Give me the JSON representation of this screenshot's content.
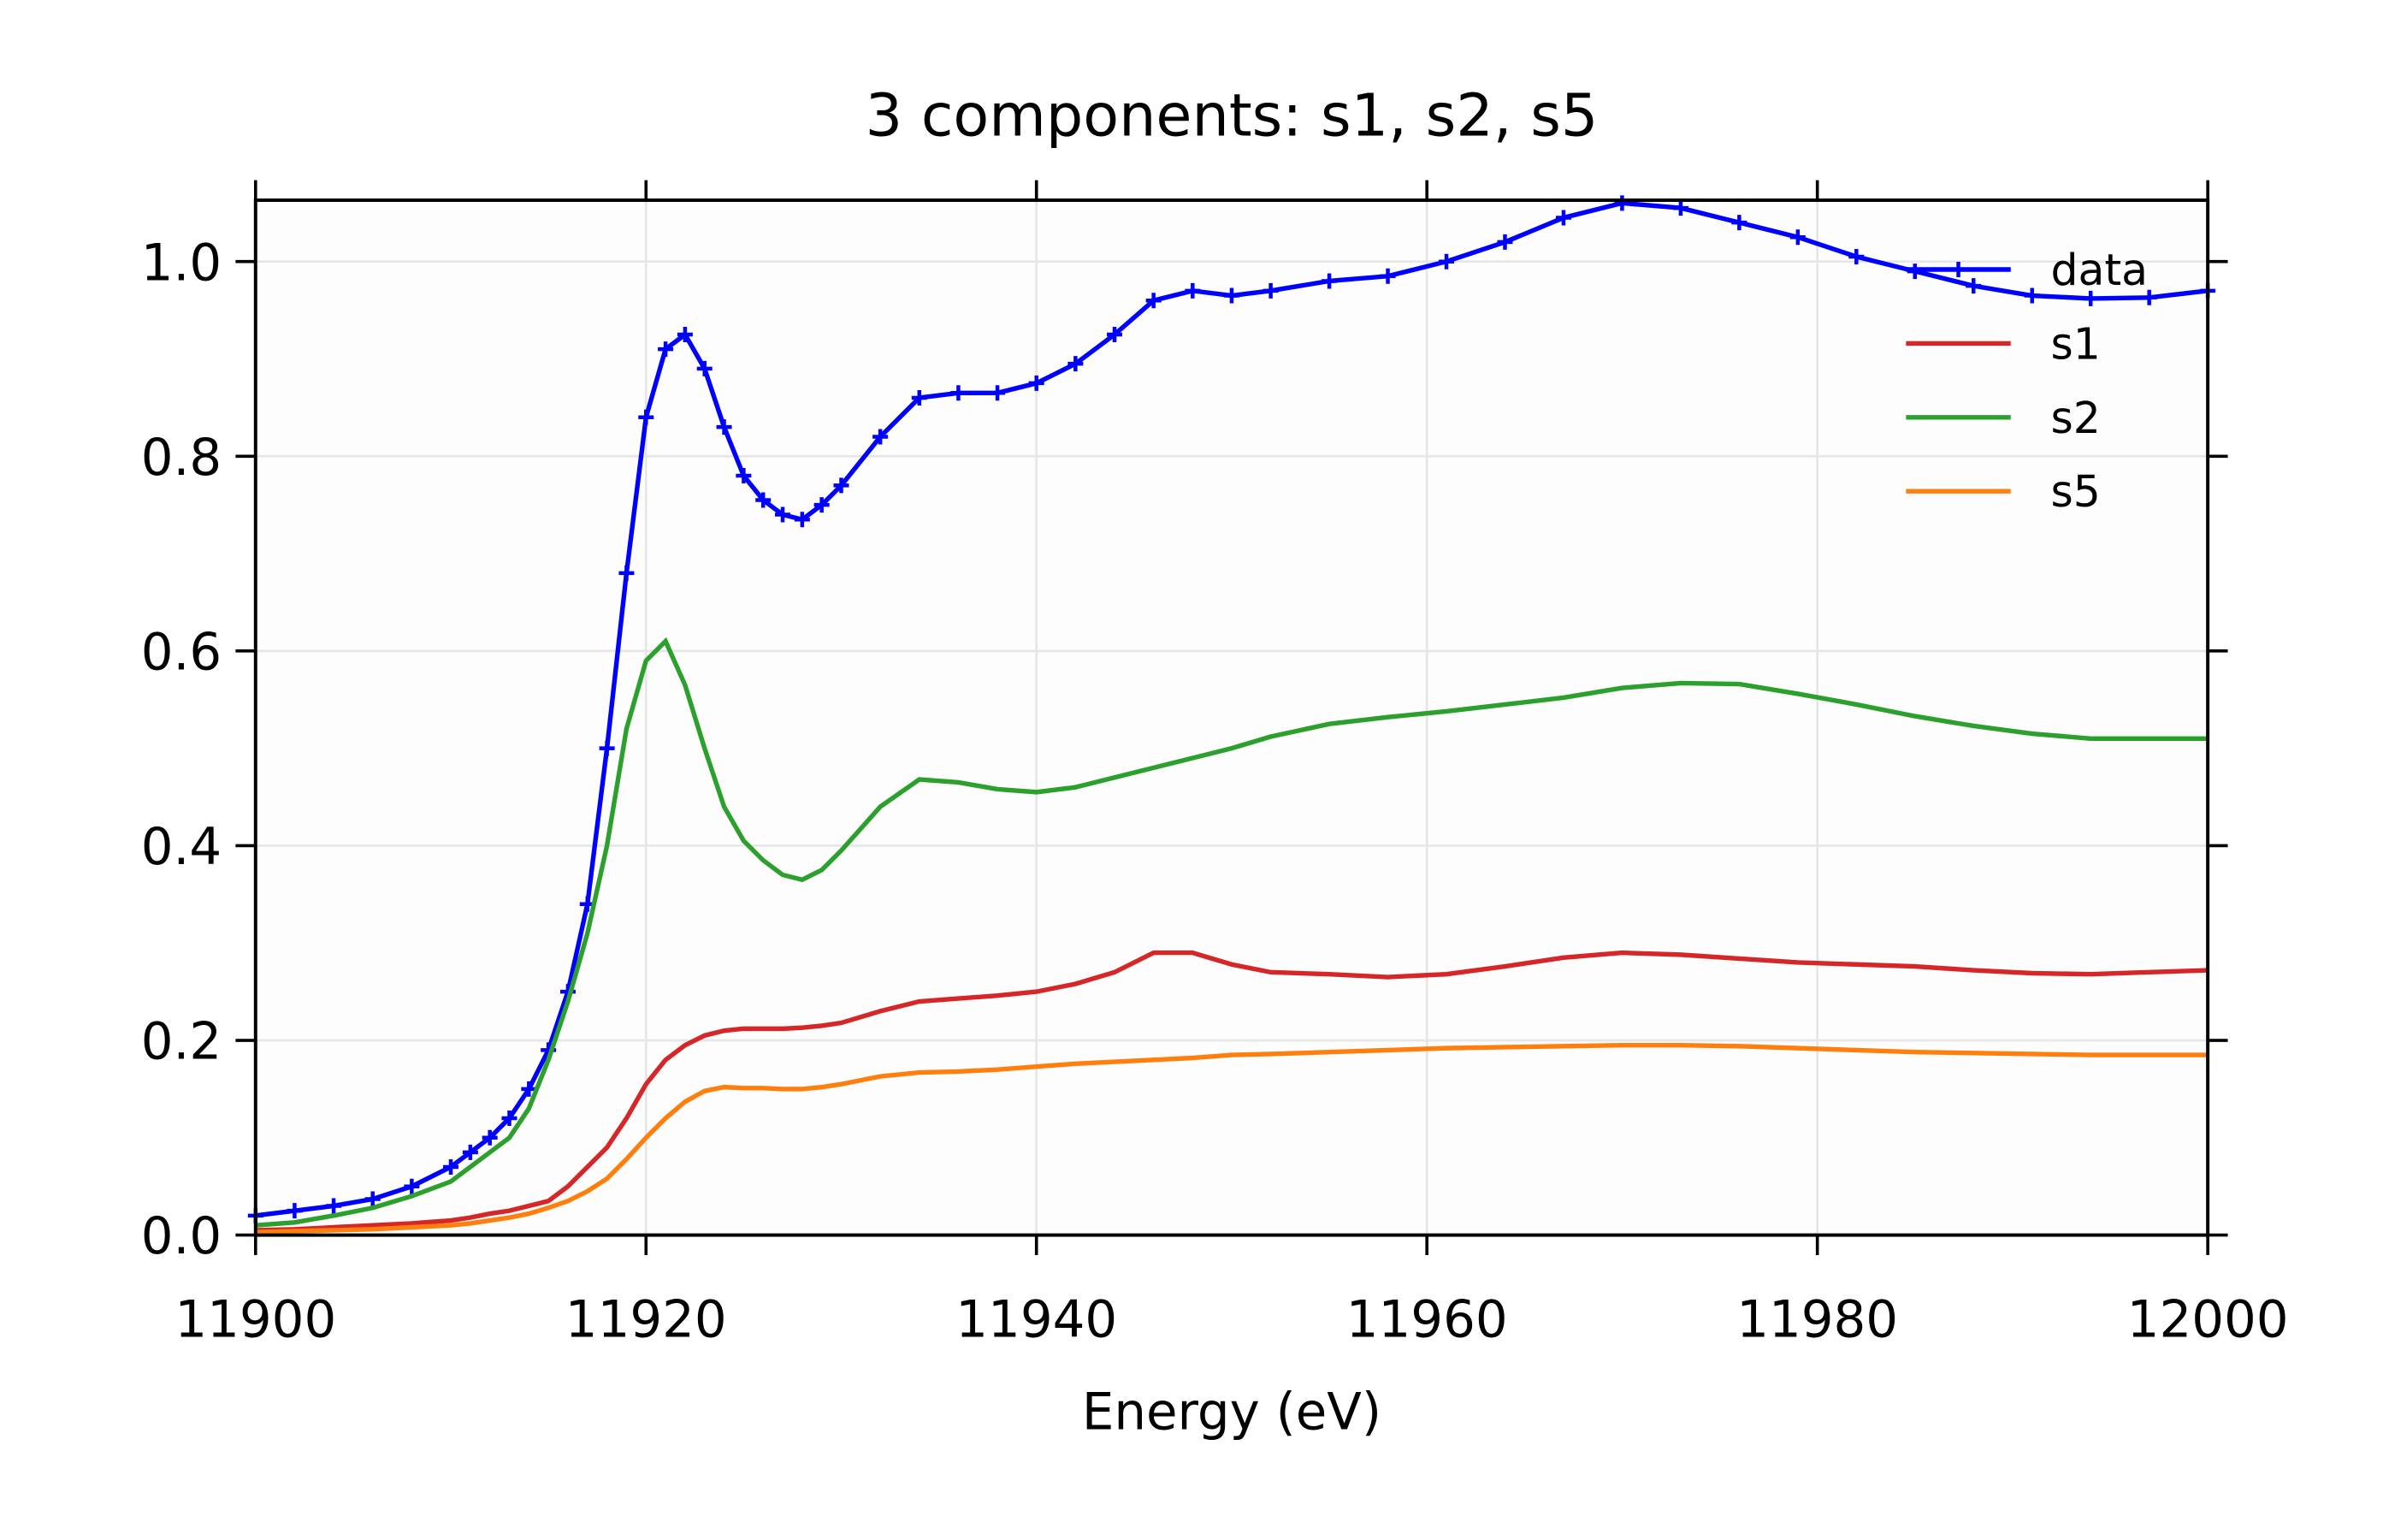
{
  "chart_data": {
    "type": "line",
    "title": "3 components:  s1, s2, s5",
    "x_label": "Energy (eV)",
    "x": [
      11900,
      11902,
      11904,
      11906,
      11908,
      11910,
      11911,
      11912,
      11913,
      11914,
      11915,
      11916,
      11917,
      11918,
      11919,
      11920,
      11921,
      11922,
      11923,
      11924,
      11925,
      11926,
      11927,
      11928,
      11929,
      11930,
      11932,
      11934,
      11936,
      11938,
      11940,
      11942,
      11944,
      11946,
      11948,
      11950,
      11952,
      11955,
      11958,
      11961,
      11964,
      11967,
      11970,
      11973,
      11976,
      11979,
      11982,
      11985,
      11988,
      11991,
      11994,
      11997,
      12000
    ],
    "series": [
      {
        "name": "data",
        "color": "#0000ff",
        "marker": "+",
        "values": [
          0.02,
          0.025,
          0.03,
          0.037,
          0.05,
          0.07,
          0.085,
          0.1,
          0.12,
          0.15,
          0.19,
          0.25,
          0.34,
          0.5,
          0.68,
          0.84,
          0.91,
          0.925,
          0.89,
          0.83,
          0.78,
          0.755,
          0.74,
          0.735,
          0.75,
          0.77,
          0.82,
          0.86,
          0.865,
          0.865,
          0.875,
          0.895,
          0.925,
          0.96,
          0.97,
          0.965,
          0.97,
          0.98,
          0.985,
          1.0,
          1.02,
          1.045,
          1.06,
          1.055,
          1.04,
          1.025,
          1.005,
          0.99,
          0.975,
          0.965,
          0.962,
          0.963,
          0.97
        ]
      },
      {
        "name": "s1",
        "color": "#d62728",
        "values": [
          0.005,
          0.006,
          0.008,
          0.01,
          0.012,
          0.015,
          0.018,
          0.022,
          0.025,
          0.03,
          0.035,
          0.05,
          0.07,
          0.09,
          0.12,
          0.155,
          0.18,
          0.195,
          0.205,
          0.21,
          0.212,
          0.212,
          0.212,
          0.213,
          0.215,
          0.218,
          0.23,
          0.24,
          0.243,
          0.246,
          0.25,
          0.258,
          0.27,
          0.29,
          0.29,
          0.278,
          0.27,
          0.268,
          0.265,
          0.268,
          0.276,
          0.285,
          0.29,
          0.288,
          0.284,
          0.28,
          0.278,
          0.276,
          0.272,
          0.269,
          0.268,
          0.27,
          0.272
        ]
      },
      {
        "name": "s2",
        "color": "#2ca02c",
        "values": [
          0.01,
          0.013,
          0.02,
          0.028,
          0.04,
          0.055,
          0.07,
          0.085,
          0.1,
          0.13,
          0.18,
          0.24,
          0.31,
          0.4,
          0.52,
          0.59,
          0.61,
          0.565,
          0.5,
          0.44,
          0.405,
          0.385,
          0.37,
          0.365,
          0.375,
          0.395,
          0.44,
          0.468,
          0.465,
          0.458,
          0.455,
          0.46,
          0.47,
          0.48,
          0.49,
          0.5,
          0.512,
          0.525,
          0.532,
          0.538,
          0.545,
          0.552,
          0.562,
          0.567,
          0.566,
          0.556,
          0.545,
          0.533,
          0.523,
          0.515,
          0.51,
          0.51,
          0.51
        ]
      },
      {
        "name": "s5",
        "color": "#ff7f0e",
        "values": [
          0.003,
          0.004,
          0.005,
          0.006,
          0.008,
          0.01,
          0.012,
          0.015,
          0.018,
          0.022,
          0.028,
          0.035,
          0.045,
          0.058,
          0.078,
          0.1,
          0.12,
          0.137,
          0.148,
          0.152,
          0.151,
          0.151,
          0.15,
          0.15,
          0.152,
          0.155,
          0.163,
          0.167,
          0.168,
          0.17,
          0.173,
          0.176,
          0.178,
          0.18,
          0.182,
          0.185,
          0.186,
          0.188,
          0.19,
          0.192,
          0.193,
          0.194,
          0.195,
          0.195,
          0.194,
          0.192,
          0.19,
          0.188,
          0.187,
          0.186,
          0.185,
          0.185,
          0.185
        ]
      }
    ],
    "xlim": [
      11900,
      12000
    ],
    "xticks": [
      11900,
      11920,
      11940,
      11960,
      11980,
      12000
    ],
    "ylim": [
      0,
      1.063
    ],
    "yticks": [
      {
        "value": 0,
        "label": "0.0"
      },
      0.2,
      0.4,
      0.6,
      0.8,
      {
        "value": 1,
        "label": "1.0"
      }
    ],
    "grid": true,
    "legend": "upper right"
  }
}
